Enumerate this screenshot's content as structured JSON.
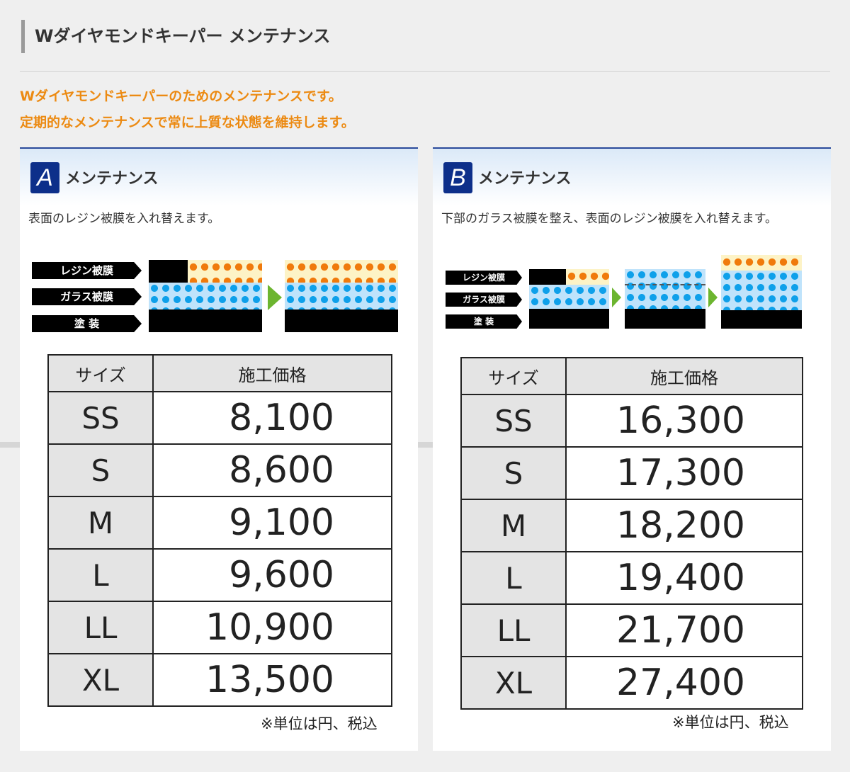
{
  "header": {
    "title": "Wダイヤモンドキーパー メンテナンス"
  },
  "intro": [
    "Wダイヤモンドキーパーのためのメンテナンスです。",
    "定期的なメンテナンスで常に上質な状態を維持します。"
  ],
  "colors": {
    "accent": "#ec8a12",
    "badge": "#0d2f8a"
  },
  "layer_labels": [
    "レジン被膜",
    "ガラス被膜",
    "塗 装"
  ],
  "panels": [
    {
      "badge": "A",
      "title": "メンテナンス",
      "description": "表面のレジン被膜を入れ替えます。",
      "table": {
        "headers": [
          "サイズ",
          "施工価格"
        ],
        "rows": [
          [
            "SS",
            "8,100"
          ],
          [
            "S",
            "8,600"
          ],
          [
            "M",
            "9,100"
          ],
          [
            "L",
            "9,600"
          ],
          [
            "LL",
            "10,900"
          ],
          [
            "XL",
            "13,500"
          ]
        ]
      },
      "note": "※単位は円、税込"
    },
    {
      "badge": "B",
      "title": "メンテナンス",
      "description": "下部のガラス被膜を整え、表面のレジン被膜を入れ替えます。",
      "table": {
        "headers": [
          "サイズ",
          "施工価格"
        ],
        "rows": [
          [
            "SS",
            "16,300"
          ],
          [
            "S",
            "17,300"
          ],
          [
            "M",
            "18,200"
          ],
          [
            "L",
            "19,400"
          ],
          [
            "LL",
            "21,700"
          ],
          [
            "XL",
            "27,400"
          ]
        ]
      },
      "note": "※単位は円、税込"
    }
  ]
}
